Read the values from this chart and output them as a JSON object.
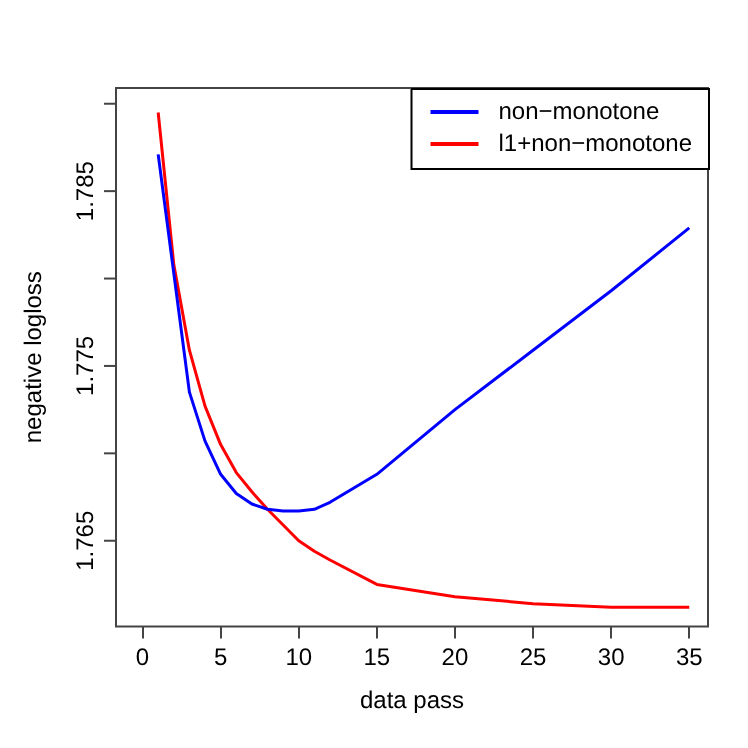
{
  "chart_data": {
    "type": "line",
    "xlabel": "data pass",
    "ylabel": "negative logloss",
    "x": [
      1,
      2,
      3,
      4,
      5,
      6,
      7,
      8,
      9,
      10,
      11,
      12,
      15,
      20,
      25,
      30,
      35
    ],
    "series": [
      {
        "name": "non−monotone",
        "color": "#0000ff",
        "values": [
          1.7871,
          1.7803,
          1.7735,
          1.7707,
          1.7688,
          1.7677,
          1.7671,
          1.7668,
          1.7667,
          1.7667,
          1.7668,
          1.7672,
          1.7688,
          1.7725,
          1.7759,
          1.7793,
          1.7829
        ]
      },
      {
        "name": "l1+non−monotone",
        "color": "#ff0000",
        "values": [
          1.7895,
          1.7808,
          1.7759,
          1.7727,
          1.7705,
          1.7689,
          1.7678,
          1.7668,
          1.7659,
          1.765,
          1.7644,
          1.7639,
          1.7625,
          1.7618,
          1.7614,
          1.7612,
          1.7612
        ]
      }
    ],
    "xlim": [
      -1.7,
      36.2
    ],
    "xticks": [
      0,
      5,
      10,
      15,
      20,
      25,
      30,
      35
    ],
    "ylim": [
      1.7601,
      1.7909
    ],
    "yticks": [
      {
        "value": 1.765,
        "label": "1.765"
      },
      {
        "value": 1.77,
        "label": null
      },
      {
        "value": 1.775,
        "label": "1.775"
      },
      {
        "value": 1.78,
        "label": null
      },
      {
        "value": 1.785,
        "label": "1.785"
      },
      {
        "value": 1.79,
        "label": null
      }
    ],
    "grid": false,
    "legend": "top right",
    "marker": "none",
    "line_style": "solid"
  }
}
